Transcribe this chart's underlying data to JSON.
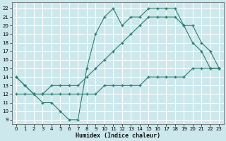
{
  "bg_color": "#cce8ed",
  "grid_color": "#ffffff",
  "line_color": "#2e7d6e",
  "xlabel": "Humidex (Indice chaleur)",
  "xlim": [
    -0.5,
    23.5
  ],
  "ylim": [
    8.5,
    22.7
  ],
  "xticks": [
    0,
    1,
    2,
    3,
    4,
    5,
    6,
    7,
    8,
    9,
    10,
    11,
    12,
    13,
    14,
    15,
    16,
    17,
    18,
    19,
    20,
    21,
    22,
    23
  ],
  "yticks": [
    9,
    10,
    11,
    12,
    13,
    14,
    15,
    16,
    17,
    18,
    19,
    20,
    21,
    22
  ],
  "line1_x": [
    0,
    1,
    2,
    3,
    4,
    5,
    6,
    7,
    8,
    9,
    10,
    11,
    12,
    13,
    14,
    15,
    16,
    17,
    18,
    19,
    20,
    21,
    22,
    23
  ],
  "line1_y": [
    14,
    13,
    12,
    11,
    11,
    10,
    9,
    9,
    15,
    19,
    21,
    22,
    20,
    21,
    21,
    22,
    22,
    22,
    22,
    20,
    18,
    17,
    15,
    15
  ],
  "line2_x": [
    0,
    1,
    2,
    3,
    4,
    5,
    6,
    7,
    8,
    9,
    10,
    11,
    12,
    13,
    14,
    15,
    16,
    17,
    18,
    19,
    20,
    21,
    22,
    23
  ],
  "line2_y": [
    14,
    13,
    12,
    12,
    13,
    13,
    13,
    13,
    14,
    15,
    16,
    17,
    18,
    19,
    20,
    21,
    21,
    21,
    21,
    20,
    20,
    18,
    17,
    15
  ],
  "line3_x": [
    0,
    1,
    2,
    3,
    4,
    5,
    6,
    7,
    8,
    9,
    10,
    11,
    12,
    13,
    14,
    15,
    16,
    17,
    18,
    19,
    20,
    21,
    22,
    23
  ],
  "line3_y": [
    12,
    12,
    12,
    12,
    12,
    12,
    12,
    12,
    12,
    12,
    13,
    13,
    13,
    13,
    13,
    14,
    14,
    14,
    14,
    14,
    15,
    15,
    15,
    15
  ]
}
